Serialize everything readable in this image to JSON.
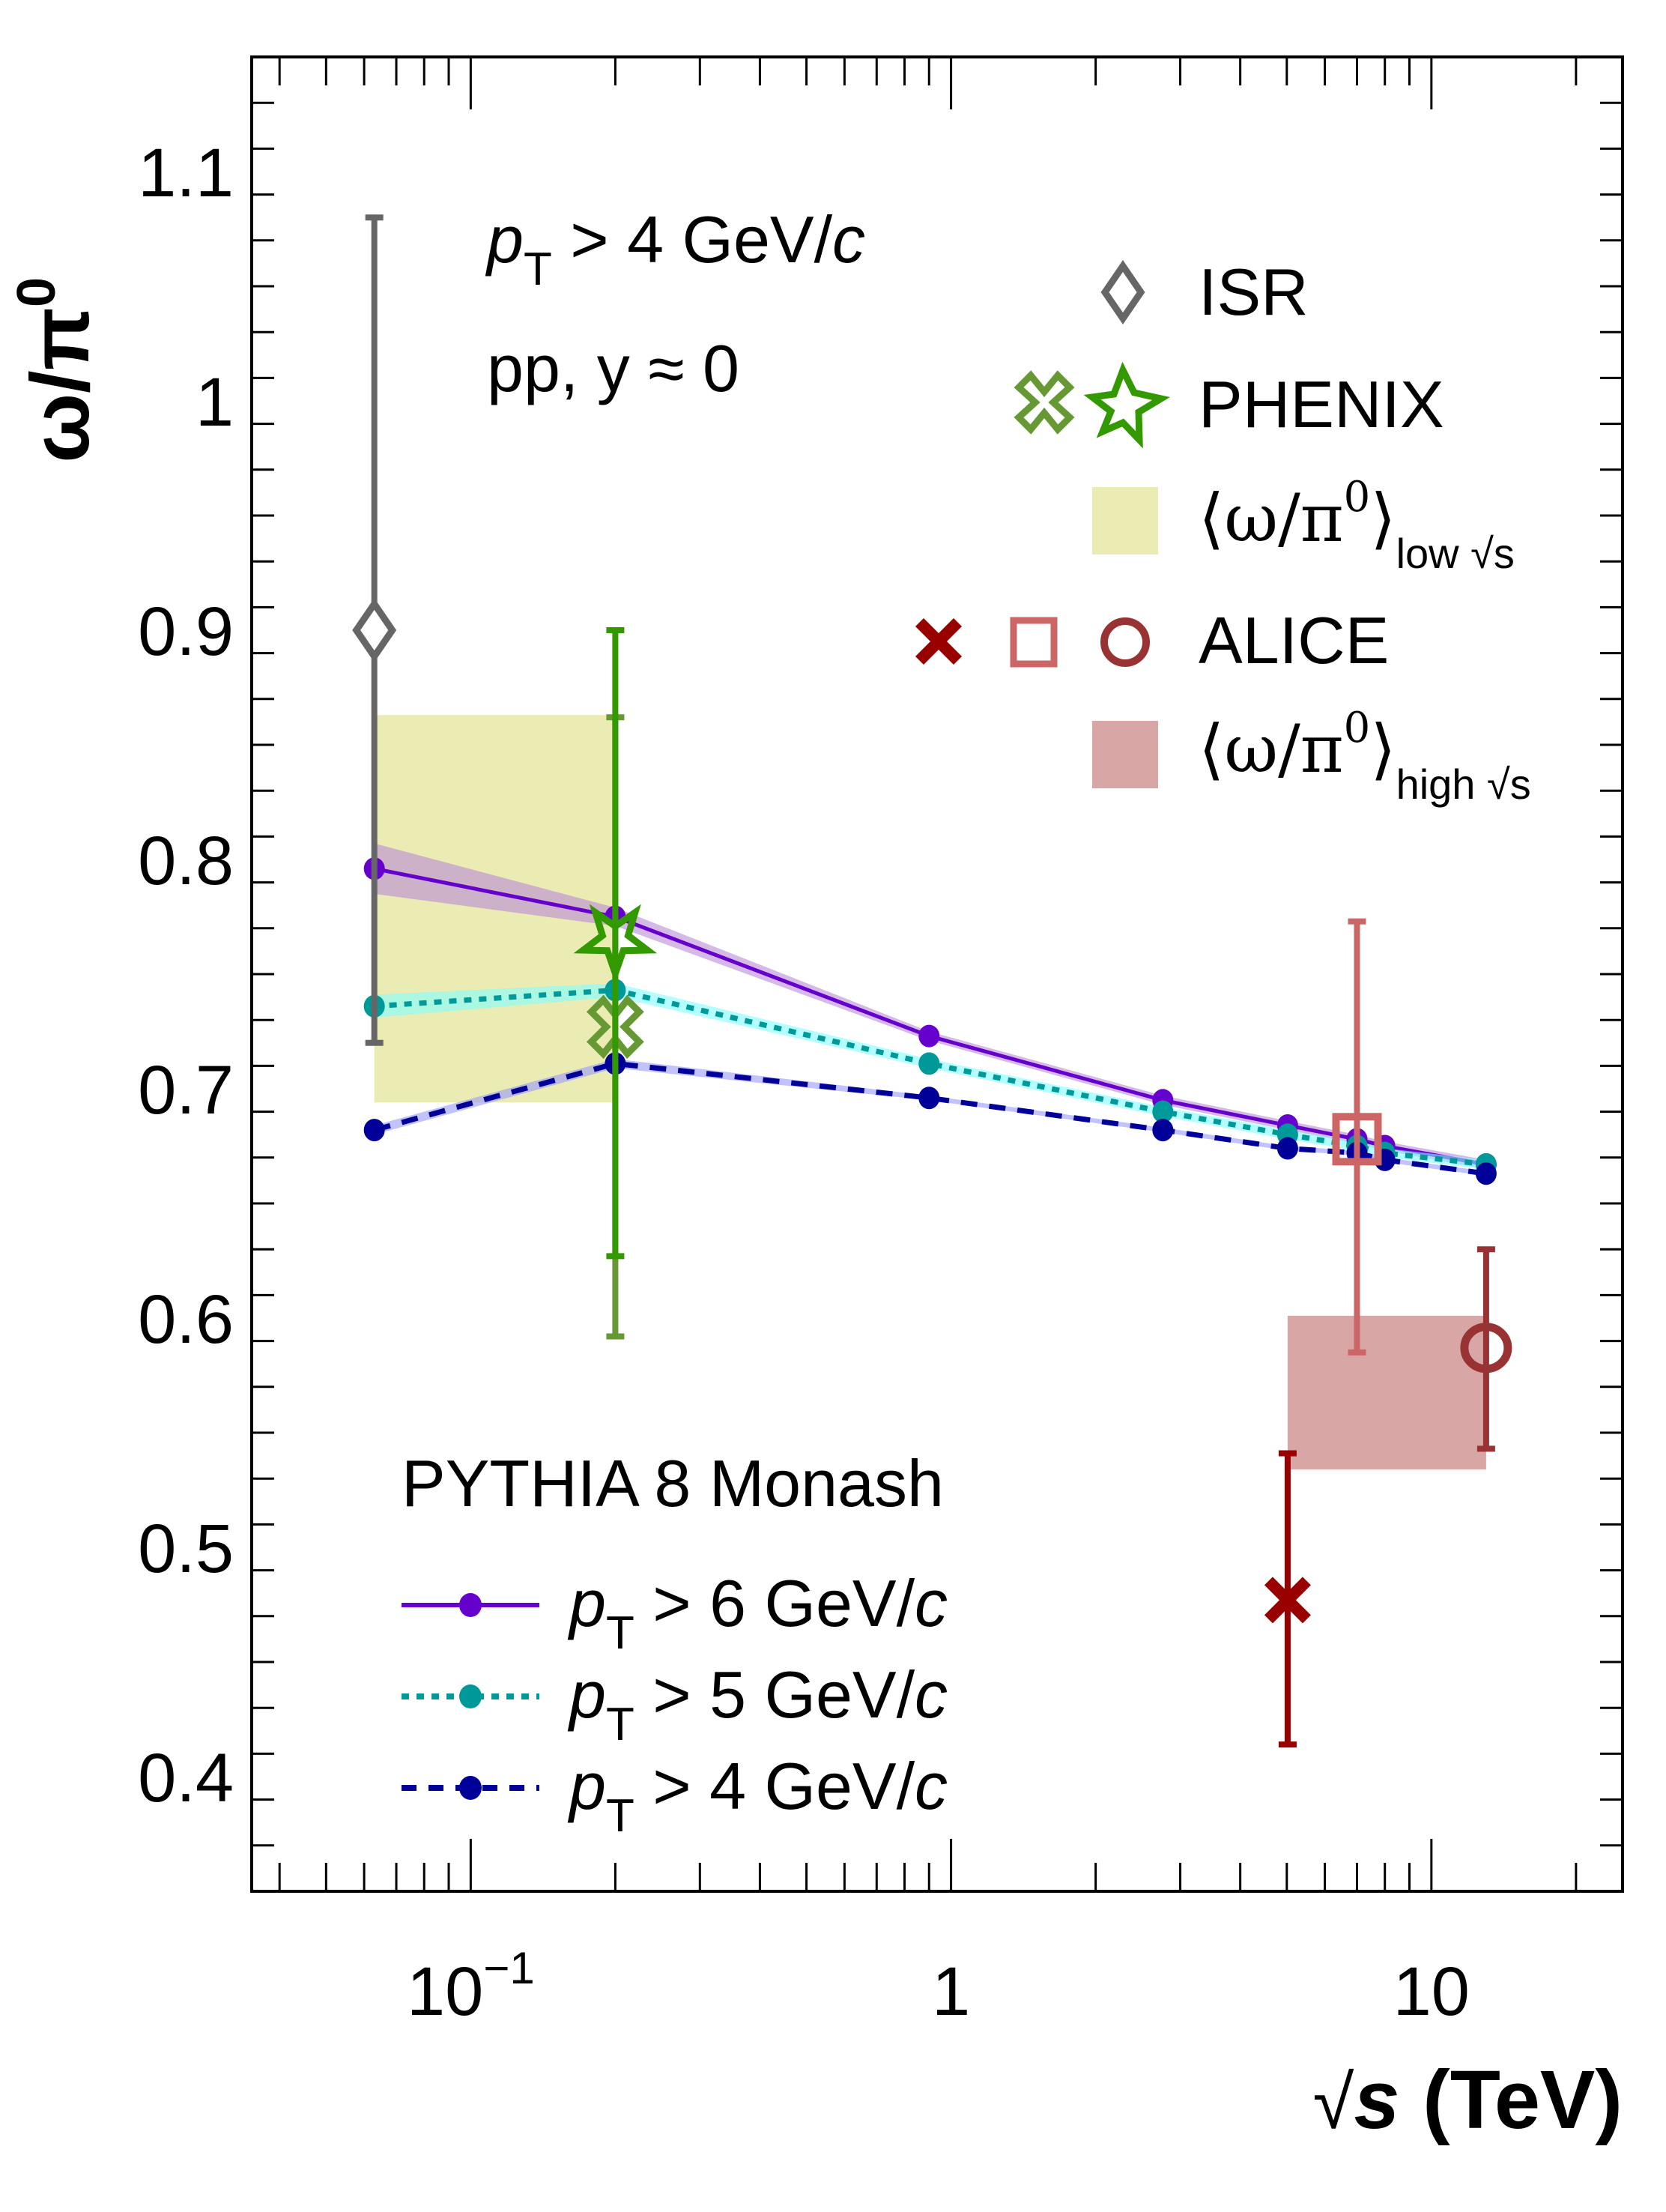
{
  "chart_data": {
    "type": "scatter",
    "title": "",
    "xlabel": "√s (TeV)",
    "ylabel": "ω/π⁰",
    "xscale": "log",
    "xlim": [
      0.035,
      25
    ],
    "ylim": [
      0.35,
      1.15
    ],
    "grid": false,
    "x_ticks": [
      {
        "value": 0.1,
        "label_base": "10",
        "label_exp": "−1"
      },
      {
        "value": 1,
        "label_base": "1",
        "label_exp": ""
      },
      {
        "value": 10,
        "label_base": "10",
        "label_exp": ""
      }
    ],
    "y_ticks": [
      {
        "value": 0.4,
        "label": "0.4"
      },
      {
        "value": 0.5,
        "label": "0.5"
      },
      {
        "value": 0.6,
        "label": "0.6"
      },
      {
        "value": 0.7,
        "label": "0.7"
      },
      {
        "value": 0.8,
        "label": "0.8"
      },
      {
        "value": 0.9,
        "label": "0.9"
      },
      {
        "value": 1.0,
        "label": "1"
      },
      {
        "value": 1.1,
        "label": "1.1"
      }
    ],
    "annotations": {
      "cut": {
        "p": "p",
        "sub": "T",
        "rest": " > 4 GeV/",
        "c": "c"
      },
      "system": "pp, y ≈ 0"
    },
    "bands": [
      {
        "name": "low-sqrt-s-average",
        "x": [
          0.063,
          0.2
        ],
        "y": [
          0.694,
          0.863
        ],
        "color": "#ebebb4"
      },
      {
        "name": "high-sqrt-s-average",
        "x": [
          5.02,
          13
        ],
        "y": [
          0.534,
          0.601
        ],
        "color": "#d9a6a6"
      }
    ],
    "experiments": [
      {
        "name": "ISR",
        "marker": "open-diamond",
        "color": "#666666",
        "points": [
          {
            "x": 0.063,
            "y": 0.9,
            "ylo": 0.72,
            "yhi": 1.08
          }
        ]
      },
      {
        "name": "PHENIX-cross",
        "marker": "open-cross",
        "color": "#669933",
        "points": [
          {
            "x": 0.2,
            "y": 0.727,
            "ylo": 0.592,
            "yhi": 0.862
          }
        ]
      },
      {
        "name": "PHENIX-star",
        "marker": "open-star",
        "color": "#339900",
        "points": [
          {
            "x": 0.2,
            "y": 0.765,
            "ylo": 0.627,
            "yhi": 0.9
          }
        ]
      },
      {
        "name": "ALICE-5TeV",
        "marker": "filled-x",
        "color": "#990000",
        "points": [
          {
            "x": 5.02,
            "y": 0.477,
            "ylo": 0.414,
            "yhi": 0.541
          }
        ]
      },
      {
        "name": "ALICE-7TeV",
        "marker": "open-square",
        "color": "#cc6666",
        "points": [
          {
            "x": 7,
            "y": 0.678,
            "ylo": 0.585,
            "yhi": 0.773
          }
        ]
      },
      {
        "name": "ALICE-13TeV",
        "marker": "open-circle",
        "color": "#993333",
        "points": [
          {
            "x": 13,
            "y": 0.587,
            "ylo": 0.543,
            "yhi": 0.63
          }
        ]
      }
    ],
    "x": [
      0.063,
      0.2,
      0.9,
      2.76,
      5.02,
      7,
      8,
      13
    ],
    "series": [
      {
        "name": "pT > 6 GeV/c",
        "cut": "6",
        "style": "solid",
        "color": "#6600cc",
        "band_color": "#b98ad6",
        "values": [
          0.796,
          0.775,
          0.723,
          0.695,
          0.684,
          0.678,
          0.675,
          0.667
        ],
        "band_halfwidth": [
          0.011,
          0.004,
          0.002,
          0.002,
          0.002,
          0.002,
          0.002,
          0.002
        ]
      },
      {
        "name": "pT > 5 GeV/c",
        "cut": "5",
        "style": "dotted",
        "color": "#009999",
        "band_color": "#80ffff",
        "values": [
          0.736,
          0.743,
          0.711,
          0.69,
          0.68,
          0.675,
          0.672,
          0.667
        ],
        "band_halfwidth": [
          0.005,
          0.003,
          0.002,
          0.002,
          0.002,
          0.002,
          0.002,
          0.002
        ]
      },
      {
        "name": "pT > 4 GeV/c",
        "cut": "4",
        "style": "dashed",
        "color": "#000099",
        "band_color": "#9999ff",
        "values": [
          0.682,
          0.711,
          0.696,
          0.682,
          0.674,
          0.672,
          0.669,
          0.663
        ],
        "band_halfwidth": [
          0.002,
          0.002,
          0.001,
          0.001,
          0.001,
          0.001,
          0.001,
          0.001
        ]
      }
    ],
    "legend_experiments": {
      "placement": "top-right",
      "entries": [
        {
          "label": "ISR"
        },
        {
          "label": "PHENIX"
        },
        {
          "label_main": "⟨ω/π",
          "label_sup": "0",
          "label_close": "⟩",
          "label_sub": "low √s"
        },
        {
          "label": "ALICE"
        },
        {
          "label_main": "⟨ω/π",
          "label_sup": "0",
          "label_close": "⟩",
          "label_sub": "high √s"
        }
      ]
    },
    "legend_model": {
      "placement": "bottom-left",
      "title": "PYTHIA 8 Monash",
      "entries": [
        {
          "p": "p",
          "sub": "T",
          "rest": " > 6 GeV/",
          "c": "c"
        },
        {
          "p": "p",
          "sub": "T",
          "rest": " > 5 GeV/",
          "c": "c"
        },
        {
          "p": "p",
          "sub": "T",
          "rest": " > 4 GeV/",
          "c": "c"
        }
      ]
    }
  }
}
